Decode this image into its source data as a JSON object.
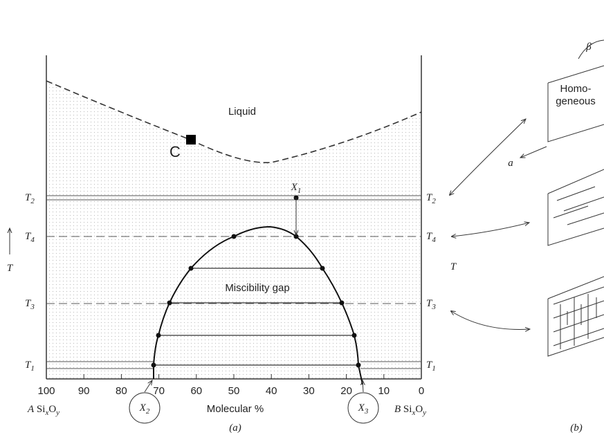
{
  "panel_a": {
    "regions": {
      "liquid": "Liquid",
      "gap": "Miscibility gap"
    },
    "point_label": "C",
    "levels": [
      {
        "symbol": "T",
        "sub": "2"
      },
      {
        "symbol": "T",
        "sub": "4"
      },
      {
        "symbol": "T",
        "sub": "3"
      },
      {
        "symbol": "T",
        "sub": "1"
      }
    ],
    "axis_symbol": "T",
    "compositions": [
      {
        "symbol": "X",
        "sub": "1"
      },
      {
        "symbol": "X",
        "sub": "2"
      },
      {
        "symbol": "X",
        "sub": "3"
      }
    ],
    "x_ticks": [
      100,
      90,
      80,
      70,
      60,
      50,
      40,
      30,
      20,
      10,
      0
    ],
    "x_title": "Molecular %",
    "end_left": {
      "prefix": "A",
      "parts": [
        "Si",
        "x",
        "O",
        "y"
      ]
    },
    "end_right": {
      "prefix": "B",
      "parts": [
        "Si",
        "x",
        "O",
        "y"
      ]
    },
    "caption": "(a)"
  },
  "panel_b": {
    "state": [
      "Homo-",
      "geneous"
    ],
    "angle": "β",
    "direction": "a",
    "caption": "(b)"
  }
}
